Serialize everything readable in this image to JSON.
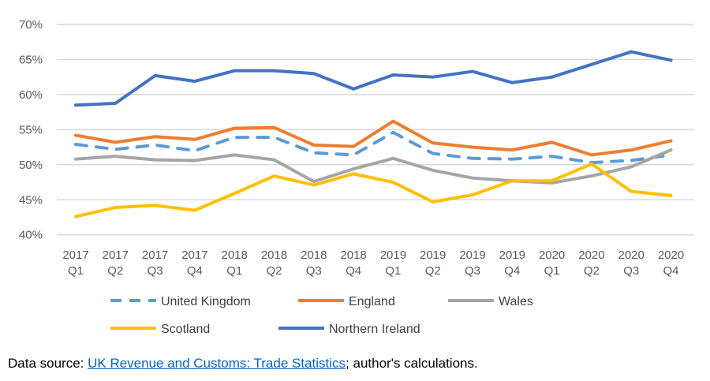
{
  "chart_data": {
    "type": "line",
    "categories": [
      "2017 Q1",
      "2017 Q2",
      "2017 Q3",
      "2017 Q4",
      "2018 Q1",
      "2018 Q2",
      "2018 Q3",
      "2018 Q4",
      "2019 Q1",
      "2019 Q2",
      "2019 Q3",
      "2019 Q4",
      "2020 Q1",
      "2020 Q2",
      "2020 Q3",
      "2020 Q4"
    ],
    "y_ticks": [
      "40%",
      "45%",
      "50%",
      "55%",
      "60%",
      "65%",
      "70%"
    ],
    "ylim": [
      40,
      70
    ],
    "grid": true,
    "legend_placement": "bottom",
    "series": [
      {
        "name": "United Kingdom",
        "color": "#5B9BD5",
        "dashed": true,
        "values": [
          52.9,
          52.2,
          52.8,
          52.0,
          53.9,
          53.9,
          51.7,
          51.4,
          54.6,
          51.6,
          50.9,
          50.8,
          51.2,
          50.3,
          50.6,
          51.4
        ]
      },
      {
        "name": "England",
        "color": "#ED7D31",
        "dashed": false,
        "values": [
          54.2,
          53.2,
          54.0,
          53.6,
          55.2,
          55.3,
          52.8,
          52.6,
          56.2,
          53.1,
          52.5,
          52.1,
          53.2,
          51.4,
          52.1,
          53.4
        ]
      },
      {
        "name": "Wales",
        "color": "#A5A5A5",
        "dashed": false,
        "values": [
          50.8,
          51.2,
          50.7,
          50.6,
          51.4,
          50.7,
          47.6,
          49.4,
          50.9,
          49.2,
          48.1,
          47.7,
          47.4,
          48.4,
          49.7,
          52.1
        ]
      },
      {
        "name": "Scotland",
        "color": "#FFC000",
        "dashed": false,
        "values": [
          42.6,
          43.9,
          44.2,
          43.5,
          45.9,
          48.4,
          47.1,
          48.7,
          47.5,
          44.7,
          45.7,
          47.7,
          47.7,
          50.1,
          46.2,
          45.6
        ]
      },
      {
        "name": "Northern Ireland",
        "color": "#4472C4",
        "dashed": false,
        "values": [
          58.5,
          58.75,
          62.7,
          61.9,
          63.4,
          63.4,
          63.0,
          60.8,
          62.8,
          62.5,
          63.3,
          61.7,
          62.5,
          64.3,
          66.1,
          64.9
        ]
      }
    ]
  },
  "source": {
    "prefix": "Data source: ",
    "link_text": "UK Revenue and Customs: Trade Statistics",
    "suffix": "; author's calculations."
  }
}
